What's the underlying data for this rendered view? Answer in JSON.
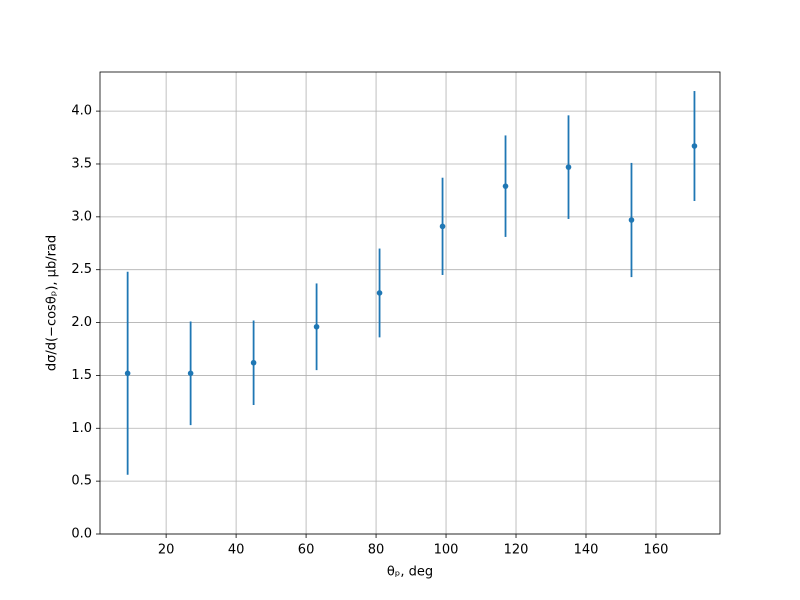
{
  "chart_data": {
    "type": "errorbar",
    "x_label": "θₚ, deg",
    "y_label": "dσ/d(−cosθₚ), μb/rad",
    "x": [
      9,
      27,
      45,
      63,
      81,
      99,
      117,
      135,
      153,
      171
    ],
    "values": [
      1.52,
      1.52,
      1.62,
      1.96,
      2.28,
      2.91,
      3.29,
      3.47,
      2.97,
      3.67
    ],
    "errors": [
      0.96,
      0.49,
      0.4,
      0.41,
      0.42,
      0.46,
      0.48,
      0.49,
      0.54,
      0.52
    ],
    "color": "#1f77b4",
    "xlim": [
      1.1,
      178.3
    ],
    "ylim": [
      0,
      4.37
    ],
    "xticks": [
      20,
      40,
      60,
      80,
      100,
      120,
      140,
      160
    ],
    "yticks": [
      {
        "value": 0,
        "label": "0.0"
      },
      {
        "value": 0.5,
        "label": "0.5"
      },
      {
        "value": 1,
        "label": "1.0"
      },
      {
        "value": 1.5,
        "label": "1.5"
      },
      {
        "value": 2,
        "label": "2.0"
      },
      {
        "value": 2.5,
        "label": "2.5"
      },
      {
        "value": 3,
        "label": "3.0"
      },
      {
        "value": 3.5,
        "label": "3.5"
      },
      {
        "value": 4,
        "label": "4.0"
      }
    ],
    "grid": true
  }
}
